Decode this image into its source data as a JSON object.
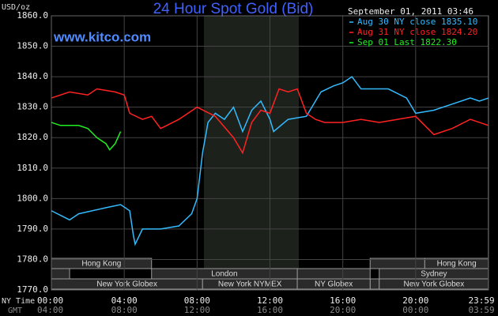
{
  "chart_data": {
    "type": "line",
    "title": "24 Hour Spot Gold (Bid)",
    "subtitle": "www.kitco.com",
    "y_label": "USD/oz",
    "timestamp": "September 01, 2011 03:46",
    "x_label": "NY Time",
    "x2_label": "GMT",
    "xlim": [
      0,
      24
    ],
    "xticks": [
      {
        "value": 0,
        "label": "00:00"
      },
      {
        "value": 4,
        "label": "04:00"
      },
      {
        "value": 8,
        "label": "08:00"
      },
      {
        "value": 12,
        "label": "12:00"
      },
      {
        "value": 16,
        "label": "16:00"
      },
      {
        "value": 20,
        "label": "20:00"
      },
      {
        "value": 23.983,
        "label": "23:59"
      }
    ],
    "gmt_tick_labels": [
      "04:00",
      "08:00",
      "12:00",
      "16:00",
      "20:00",
      "00:00",
      "03:59"
    ],
    "ylim": [
      1770,
      1860
    ],
    "yticks": [
      {
        "value": 1770,
        "label": "1770.0"
      },
      {
        "value": 1780,
        "label": "1780.0"
      },
      {
        "value": 1790,
        "label": "1790.0"
      },
      {
        "value": 1800,
        "label": "1800.0"
      },
      {
        "value": 1810,
        "label": "1810.0"
      },
      {
        "value": 1820,
        "label": "1820.0"
      },
      {
        "value": 1830,
        "label": "1830.0"
      },
      {
        "value": 1840,
        "label": "1840.0"
      },
      {
        "value": 1850,
        "label": "1850.0"
      },
      {
        "value": 1860,
        "label": "1860.0"
      }
    ],
    "grid": true,
    "sessions": [
      "Hong Kong",
      "London",
      "New York Globex",
      "New York NYMEX",
      "NY Globex",
      "Hong Kong",
      "Sydney",
      "New York Globex"
    ],
    "series": [
      {
        "name": "Aug 30 NY close 1835.10",
        "color": "#33bbff",
        "x": [
          0,
          1,
          1.5,
          3,
          3.8,
          4.3,
          4.5,
          4.6,
          5,
          6,
          7,
          7.7,
          8,
          8.3,
          8.6,
          9,
          9.5,
          10,
          10.5,
          11,
          11.5,
          12,
          12.2,
          13,
          14,
          14.2,
          14.8,
          15.5,
          16,
          16.5,
          17,
          18.5,
          19.5,
          20,
          21,
          22,
          23,
          23.5,
          24
        ],
        "values": [
          1796,
          1793,
          1795,
          1797,
          1798,
          1796,
          1788,
          1785,
          1790,
          1790,
          1791,
          1795,
          1800,
          1815,
          1825,
          1828,
          1826,
          1830,
          1822,
          1829,
          1832,
          1826,
          1822,
          1826,
          1827,
          1829,
          1835,
          1837,
          1838,
          1840,
          1836,
          1836,
          1833,
          1828,
          1829,
          1831,
          1833,
          1832,
          1833
        ]
      },
      {
        "name": "Aug 31 NY close 1824.20",
        "color": "#ff2222",
        "x": [
          0,
          1,
          2,
          2.5,
          3.5,
          4,
          4.3,
          5,
          5.5,
          6,
          7,
          8,
          9,
          10,
          10.5,
          11,
          11.5,
          12,
          12.5,
          13,
          13.5,
          14,
          14.5,
          15,
          16,
          17,
          18,
          19,
          20,
          20.5,
          21,
          22,
          23,
          24
        ],
        "values": [
          1833,
          1835,
          1834,
          1836,
          1835,
          1834,
          1828,
          1826,
          1827,
          1823,
          1826,
          1830,
          1827,
          1820,
          1815,
          1825,
          1829,
          1828,
          1836,
          1835,
          1836,
          1828,
          1826,
          1825,
          1825,
          1826,
          1825,
          1826,
          1827,
          1824,
          1821,
          1823,
          1826,
          1824
        ]
      },
      {
        "name": "Sep 01 Last 1822.30",
        "color": "#22ee22",
        "x": [
          0,
          0.5,
          1.5,
          2,
          2.5,
          3,
          3.2,
          3.5,
          3.8
        ],
        "values": [
          1825,
          1824,
          1824,
          1823,
          1820,
          1818,
          1816,
          1818,
          1822
        ]
      }
    ]
  }
}
